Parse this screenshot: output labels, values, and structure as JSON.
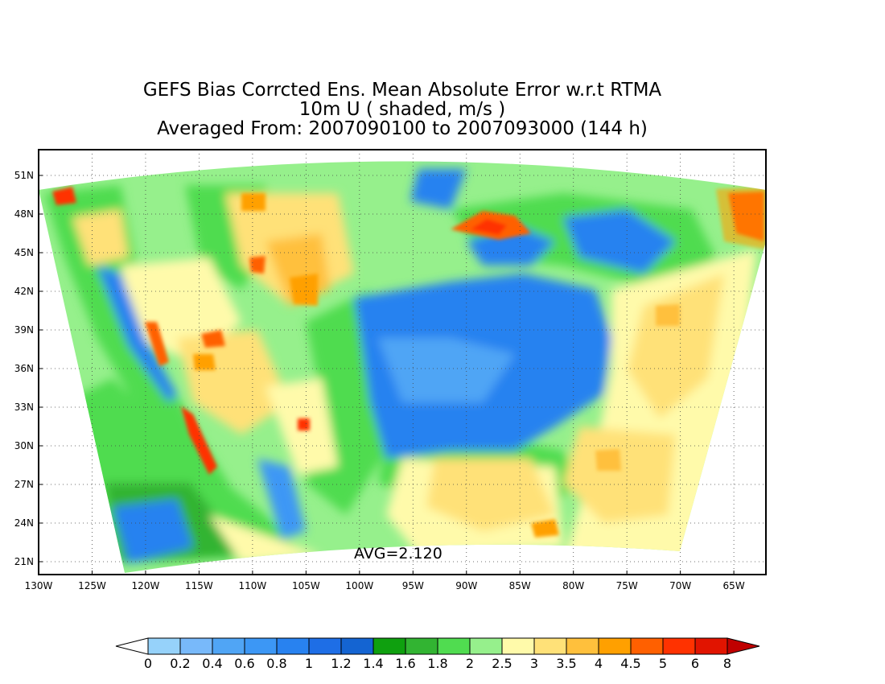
{
  "title": {
    "line1": "GEFS Bias Corrcted Ens. Mean Absolute Error w.r.t RTMA",
    "line2": "10m U ( shaded, m/s )",
    "line3": "Averaged From: 2007090100 to 2007093000 (144 h)"
  },
  "map": {
    "avg_label": "AVG=2.120",
    "lat_labels": [
      "51N",
      "48N",
      "45N",
      "42N",
      "39N",
      "36N",
      "33N",
      "30N",
      "27N",
      "24N",
      "21N"
    ],
    "lon_labels": [
      "130W",
      "125W",
      "120W",
      "115W",
      "110W",
      "105W",
      "100W",
      "95W",
      "90W",
      "85W",
      "80W",
      "75W",
      "70W",
      "65W"
    ],
    "lat_values": [
      51,
      48,
      45,
      42,
      39,
      36,
      33,
      30,
      27,
      24,
      21
    ],
    "lon_values": [
      -130,
      -125,
      -120,
      -115,
      -110,
      -105,
      -100,
      -95,
      -90,
      -85,
      -80,
      -75,
      -70,
      -65
    ],
    "lon_range": [
      -130,
      -62
    ],
    "lat_range": [
      20,
      53
    ],
    "grid": true
  },
  "colorbar": {
    "labels": [
      "0",
      "0.2",
      "0.4",
      "0.6",
      "0.8",
      "1",
      "1.2",
      "1.4",
      "1.6",
      "1.8",
      "2",
      "2.5",
      "3",
      "3.5",
      "4",
      "4.5",
      "5",
      "6",
      "8"
    ],
    "colors": [
      "#ffffff",
      "#96d2fa",
      "#78b9fa",
      "#50a5f5",
      "#3c97f5",
      "#2882f0",
      "#1e6ee6",
      "#1464d2",
      "#0fa00f",
      "#32b432",
      "#50dc50",
      "#96f08c",
      "#fffaaa",
      "#ffe178",
      "#ffc03c",
      "#ffa000",
      "#ff6000",
      "#ff3200",
      "#e11400",
      "#c00000"
    ]
  }
}
